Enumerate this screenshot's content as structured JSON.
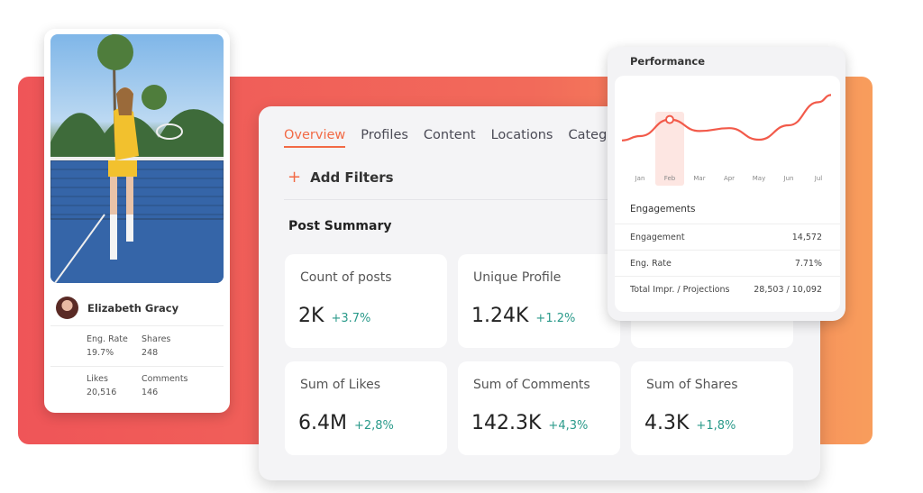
{
  "tabs": [
    {
      "label": "Overview",
      "active": true
    },
    {
      "label": "Profiles"
    },
    {
      "label": "Content"
    },
    {
      "label": "Locations"
    },
    {
      "label": "Catego"
    }
  ],
  "add_filters": "Add Filters",
  "section_title": "Post Summary",
  "summary_cards": [
    {
      "label": "Count of posts",
      "value": "2K",
      "change": "+3.7%"
    },
    {
      "label": "Unique Profile",
      "value": "1.24K",
      "change": "+1.2%"
    },
    {
      "label": "Sum of Likes",
      "value": "6.4M",
      "change": "+2,8%"
    },
    {
      "label": "Sum of Comments",
      "value": "142.3K",
      "change": "+4,3%"
    },
    {
      "label": "Sum of Shares",
      "value": "4.3K",
      "change": "+1,8%"
    }
  ],
  "profile": {
    "name": "Elizabeth Gracy",
    "stats": [
      {
        "label": "Eng. Rate",
        "value": "19.7%"
      },
      {
        "label": "Shares",
        "value": "248"
      },
      {
        "label": "Likes",
        "value": "20,516"
      },
      {
        "label": "Comments",
        "value": "146"
      }
    ]
  },
  "performance": {
    "title": "Performance",
    "engagements_title": "Engagements",
    "rows": [
      {
        "label": "Engagement",
        "value": "14,572"
      },
      {
        "label": "Eng. Rate",
        "value": "7.71%"
      },
      {
        "label": "Total Impr. / Projections",
        "value": "28,503 / 10,092"
      }
    ]
  },
  "chart_data": {
    "type": "line",
    "categories": [
      "Jan",
      "Feb",
      "Mar",
      "Apr",
      "May",
      "Jun",
      "Jul"
    ],
    "values": [
      35,
      58,
      42,
      46,
      30,
      50,
      82
    ],
    "highlight": "Feb",
    "color": "#f25a4a",
    "ylim": [
      0,
      100
    ]
  },
  "colors": {
    "accent": "#f26a45",
    "positive": "#2a9a8a"
  }
}
